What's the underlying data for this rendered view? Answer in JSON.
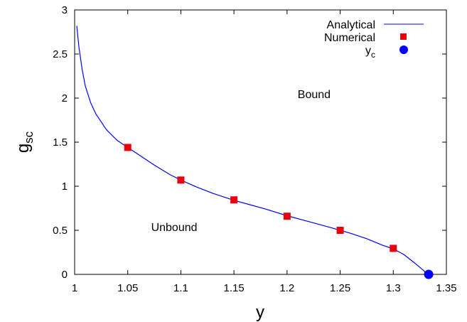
{
  "chart_data": {
    "type": "line",
    "xlabel": "y",
    "ylabel": {
      "base": "g",
      "sub": "sc"
    },
    "xlim": [
      1.0,
      1.35
    ],
    "ylim": [
      0,
      3
    ],
    "xticks": [
      "1",
      "1.05",
      "1.1",
      "1.15",
      "1.2",
      "1.25",
      "1.3",
      "1.35"
    ],
    "xtick_values": [
      1.0,
      1.05,
      1.1,
      1.15,
      1.2,
      1.25,
      1.3,
      1.35
    ],
    "yticks": [
      "0",
      "0.5",
      "1",
      "1.5",
      "2",
      "2.5",
      "3"
    ],
    "ytick_values": [
      0,
      0.5,
      1.0,
      1.5,
      2.0,
      2.5,
      3.0
    ],
    "grid": false,
    "legend_position": "top-right",
    "series": [
      {
        "name": "Analytical",
        "kind": "line",
        "color": "#0000ff",
        "x": [
          1.002,
          1.004,
          1.007,
          1.01,
          1.015,
          1.02,
          1.03,
          1.04,
          1.05,
          1.06,
          1.075,
          1.09,
          1.1,
          1.115,
          1.13,
          1.15,
          1.165,
          1.18,
          1.2,
          1.22,
          1.24,
          1.25,
          1.26,
          1.275,
          1.29,
          1.3,
          1.31,
          1.32,
          1.325,
          1.328,
          1.3305,
          1.332
        ],
        "y": [
          2.82,
          2.58,
          2.33,
          2.14,
          1.95,
          1.82,
          1.64,
          1.52,
          1.44,
          1.36,
          1.24,
          1.13,
          1.07,
          0.99,
          0.92,
          0.84,
          0.79,
          0.74,
          0.665,
          0.6,
          0.535,
          0.5,
          0.465,
          0.405,
          0.33,
          0.29,
          0.225,
          0.13,
          0.08,
          0.05,
          0.02,
          0.0
        ]
      },
      {
        "name": "Numerical",
        "kind": "points",
        "marker": "square",
        "color": "#e8000b",
        "x": [
          1.05,
          1.1,
          1.15,
          1.2,
          1.25,
          1.3
        ],
        "y": [
          1.44,
          1.07,
          0.845,
          0.66,
          0.5,
          0.295
        ]
      },
      {
        "name": "y",
        "name_sub": "c",
        "kind": "points",
        "marker": "circle",
        "color": "#0000ff",
        "x": [
          1.3333
        ],
        "y": [
          0.0
        ]
      }
    ],
    "annotations": [
      {
        "text": "Bound",
        "x": 1.21,
        "y": 2.0
      },
      {
        "text": "Unbound",
        "x": 1.072,
        "y": 0.49
      }
    ]
  }
}
